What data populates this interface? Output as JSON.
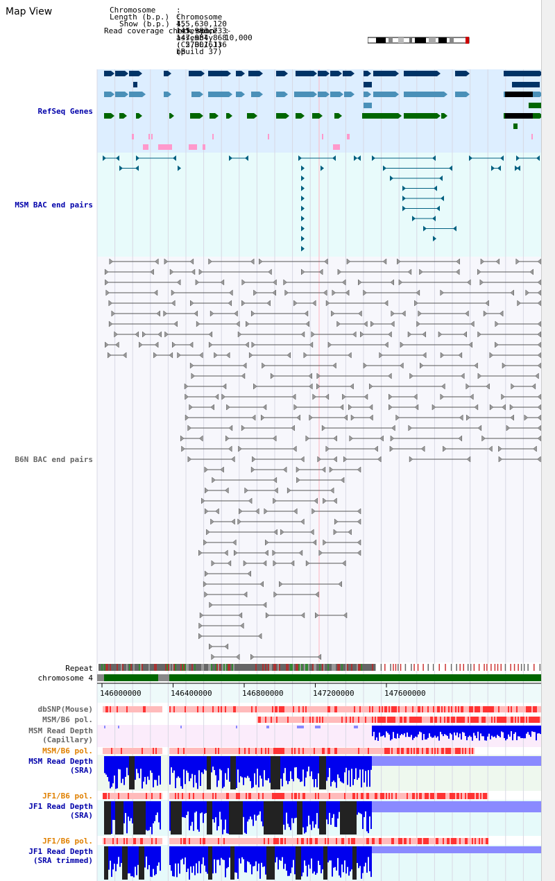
{
  "page": {
    "title": "Map View"
  },
  "info": {
    "chromosome_key": "Chromosome",
    "chromosome_val": ": Chromosome 4, reference assembly (C57BL/6J) (Build 37)",
    "length_key": "Length (b.p.)",
    "length_val": ": 155,630,120",
    "show_key": "Show (b.p.)",
    "show_val": ": 145,983,733-147,984,868 : 2,001,136 bp",
    "coverage_key": "Read coverage check span",
    "coverage_val": ": 10,000"
  },
  "tracks": {
    "refseq": "RefSeq Genes",
    "msm_bac": "MSM BAC end pairs",
    "b6n_bac": "B6N BAC end pairs",
    "repeat": "Repeat",
    "chromosome": "chromosome 4",
    "dbsnp": "dbSNP(Mouse)",
    "msm_b6_pol_1": "MSM/B6 pol.",
    "msm_depth_cap_1": "MSM Read Depth",
    "msm_depth_cap_2": "(Capillary)",
    "msm_b6_pol_2": "MSM/B6 pol.",
    "msm_depth_sra_1": "MSM Read Depth",
    "msm_depth_sra_2": "(SRA)",
    "jf1_b6_pol_1": "JF1/B6 pol.",
    "jf1_depth_sra_1": "JF1 Read Depth",
    "jf1_depth_sra_2": "(SRA)",
    "jf1_b6_pol_2": "JF1/B6 pol.",
    "jf1_depth_trim_1": "JF1 Read Depth",
    "jf1_depth_trim_2": "(SRA trimmed)"
  },
  "axis": {
    "ticks": [
      "146000000",
      "146400000",
      "146800000",
      "147200000",
      "147600000"
    ]
  },
  "colors": {
    "refseq_dark": "#003366",
    "refseq_mid": "#4a90b8",
    "refseq_green": "#006600",
    "refseq_pink": "#ff99cc",
    "refseq_bg": "#ddeeff",
    "msm_bac_bg": "#e8fbfb",
    "msm_bac_fg": "#006080",
    "b6n_fg": "#555555",
    "chrom_green": "#006600",
    "depth_blue": "#0000ee",
    "depth_light": "#8a8aff",
    "pol_red": "#ff3333",
    "pol_pink": "#ffbbbb"
  }
}
